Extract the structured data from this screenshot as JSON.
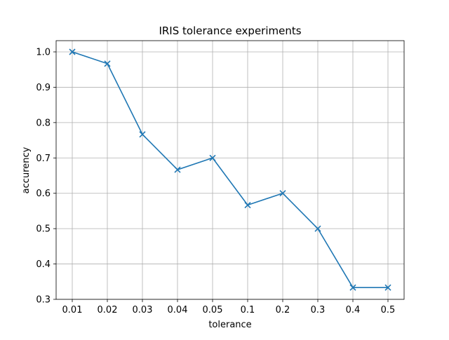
{
  "chart_data": {
    "type": "line",
    "title": "IRIS tolerance experiments",
    "xlabel": "tolerance",
    "ylabel": "accurency",
    "categories": [
      "0.01",
      "0.02",
      "0.03",
      "0.04",
      "0.05",
      "0.1",
      "0.2",
      "0.3",
      "0.4",
      "0.5"
    ],
    "series": [
      {
        "values": [
          1.0,
          0.9667,
          0.7667,
          0.6667,
          0.7,
          0.5667,
          0.6,
          0.5,
          0.3333,
          0.3333
        ],
        "color": "#1f77b4",
        "marker": "x"
      }
    ],
    "yticks": [
      "0.3",
      "0.4",
      "0.5",
      "0.6",
      "0.7",
      "0.8",
      "0.9",
      "1.0"
    ],
    "ylim": [
      0.3,
      1.0
    ],
    "grid": true
  }
}
